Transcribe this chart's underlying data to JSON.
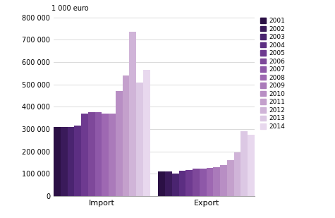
{
  "years": [
    2001,
    2002,
    2003,
    2004,
    2005,
    2006,
    2007,
    2008,
    2009,
    2010,
    2011,
    2012,
    2013,
    2014
  ],
  "import_vals": [
    310000,
    310000,
    310000,
    315000,
    370000,
    375000,
    375000,
    370000,
    370000,
    470000,
    540000,
    735000,
    510000,
    565000
  ],
  "export_vals": [
    112000,
    112000,
    100000,
    115000,
    118000,
    122000,
    125000,
    128000,
    130000,
    140000,
    160000,
    195000,
    290000,
    275000
  ],
  "colors": [
    "#2b1045",
    "#3a1a5a",
    "#4a2470",
    "#5c2e82",
    "#6e3a90",
    "#7e489a",
    "#8e58a8",
    "#9e68b2",
    "#aa7aba",
    "#b88ec4",
    "#c4a0cc",
    "#d0b4d8",
    "#dcc8e4",
    "#e8d8ee"
  ],
  "ylabel": "1 000 euro",
  "categories": [
    "Import",
    "Export"
  ],
  "ylim": [
    0,
    800000
  ],
  "yticks": [
    0,
    100000,
    200000,
    300000,
    400000,
    500000,
    600000,
    700000,
    800000
  ],
  "ytick_labels": [
    "0",
    "100 000",
    "200 000",
    "300 000",
    "400 000",
    "500 000",
    "600 000",
    "700 000",
    "800 000"
  ]
}
